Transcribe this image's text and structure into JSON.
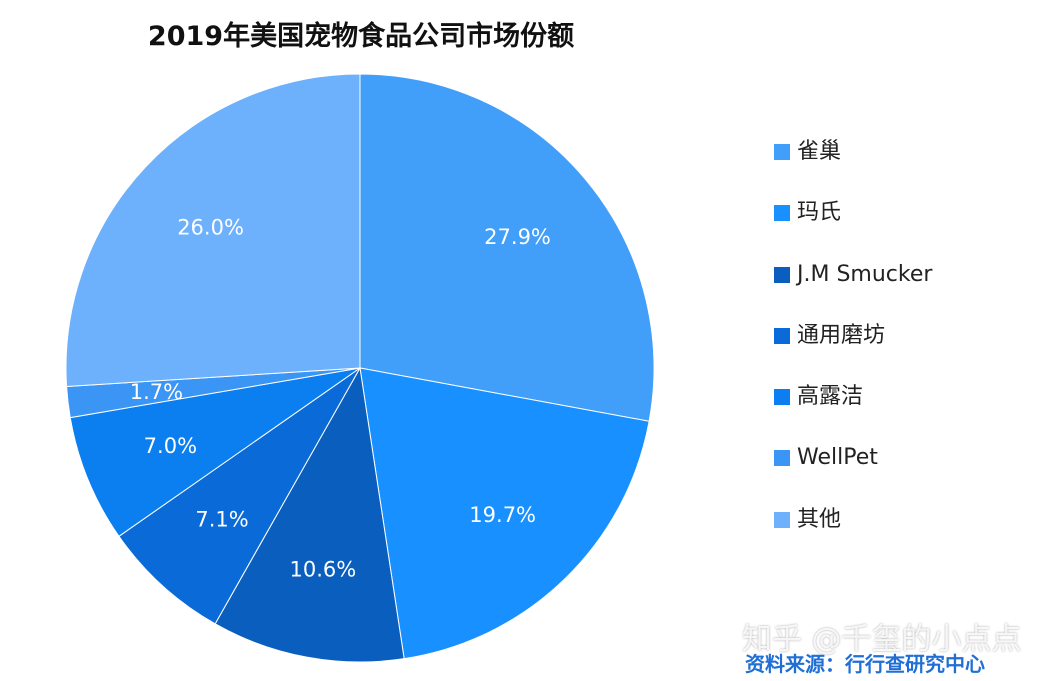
{
  "chart_data": {
    "type": "pie",
    "title": "2019年美国宠物食品公司市场份额",
    "start_angle_deg": 0,
    "direction": "clockwise",
    "legend_position": "right",
    "slices": [
      {
        "name": "雀巢",
        "value": 27.9,
        "label": "27.9%",
        "color": "#419ef9"
      },
      {
        "name": "玛氏",
        "value": 19.7,
        "label": "19.7%",
        "color": "#1890ff"
      },
      {
        "name": "J.M Smucker",
        "value": 10.6,
        "label": "10.6%",
        "color": "#0a5fbe"
      },
      {
        "name": "通用磨坊",
        "value": 7.1,
        "label": "7.1%",
        "color": "#0a6ad8"
      },
      {
        "name": "高露洁",
        "value": 7.0,
        "label": "7.0%",
        "color": "#0b7ff0"
      },
      {
        "name": "WellPet",
        "value": 1.7,
        "label": "1.7%",
        "color": "#3b95f5"
      },
      {
        "name": "其他",
        "value": 26.0,
        "label": "26.0%",
        "color": "#6db0fb"
      }
    ]
  },
  "watermark": "知乎 @千玺的小点点",
  "source_note": "资料来源：行行查研究中心"
}
